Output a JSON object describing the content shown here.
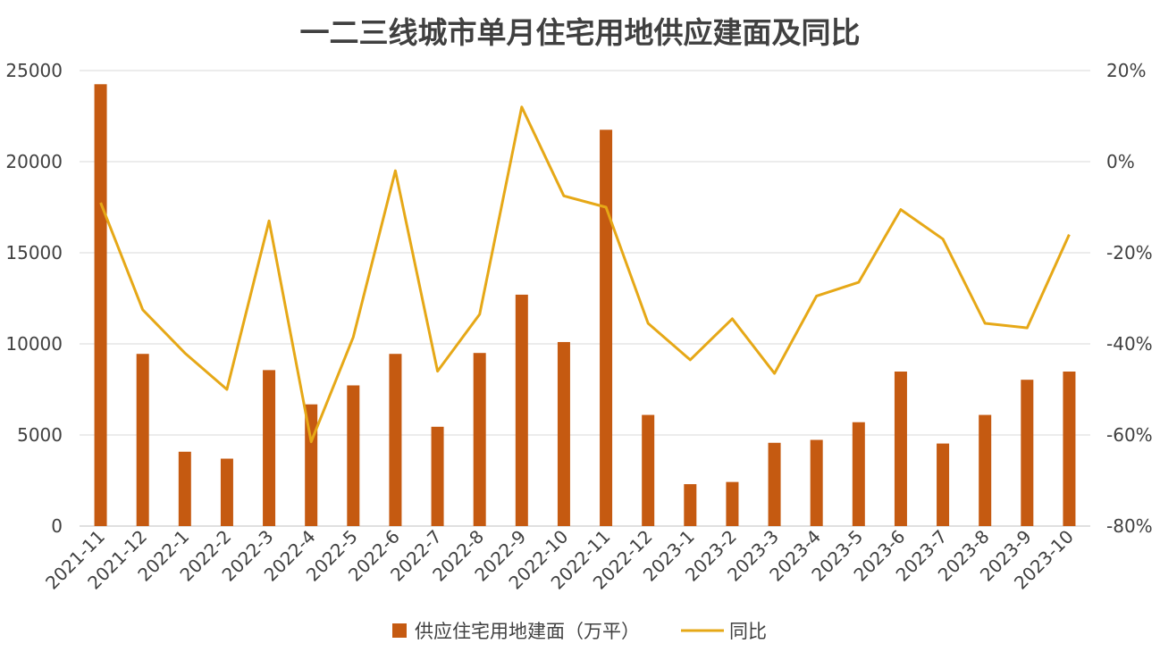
{
  "chart_data": {
    "type": "bar",
    "title": "一二三线城市单月住宅用地供应建面及同比",
    "categories": [
      "2021-11",
      "2021-12",
      "2022-1",
      "2022-2",
      "2022-3",
      "2022-4",
      "2022-5",
      "2022-6",
      "2022-7",
      "2022-8",
      "2022-9",
      "2022-10",
      "2022-11",
      "2022-12",
      "2023-1",
      "2023-2",
      "2023-3",
      "2023-4",
      "2023-5",
      "2023-6",
      "2023-7",
      "2023-8",
      "2023-9",
      "2023-10"
    ],
    "series": [
      {
        "name": "供应住宅用地建面（万平）",
        "type": "bar",
        "axis": "left",
        "color": "#C55A11",
        "values": [
          24250,
          9450,
          4080,
          3700,
          8560,
          6680,
          7720,
          9450,
          5450,
          9500,
          12700,
          10100,
          21750,
          6100,
          2300,
          2420,
          4570,
          4730,
          5700,
          8480,
          4530,
          6100,
          8030,
          8480
        ]
      },
      {
        "name": "同比",
        "type": "line",
        "axis": "right",
        "color": "#E6A817",
        "values": [
          -9,
          -32.5,
          -42,
          -50,
          -13,
          -61.5,
          -38.5,
          -2,
          -46,
          -33.5,
          12,
          -7.5,
          -10,
          -35.5,
          -43.5,
          -34.5,
          -46.5,
          -29.5,
          -26.5,
          -10.5,
          -17,
          -35.5,
          -36.5,
          -16
        ]
      }
    ],
    "left_axis": {
      "min": 0,
      "max": 25000,
      "ticks": [
        0,
        5000,
        10000,
        15000,
        20000,
        25000
      ]
    },
    "right_axis": {
      "min": -80,
      "max": 20,
      "ticks": [
        "-80%",
        "-60%",
        "-40%",
        "-20%",
        "0%",
        "20%"
      ]
    },
    "grid": "horizontal",
    "legend": "bottom-center"
  }
}
